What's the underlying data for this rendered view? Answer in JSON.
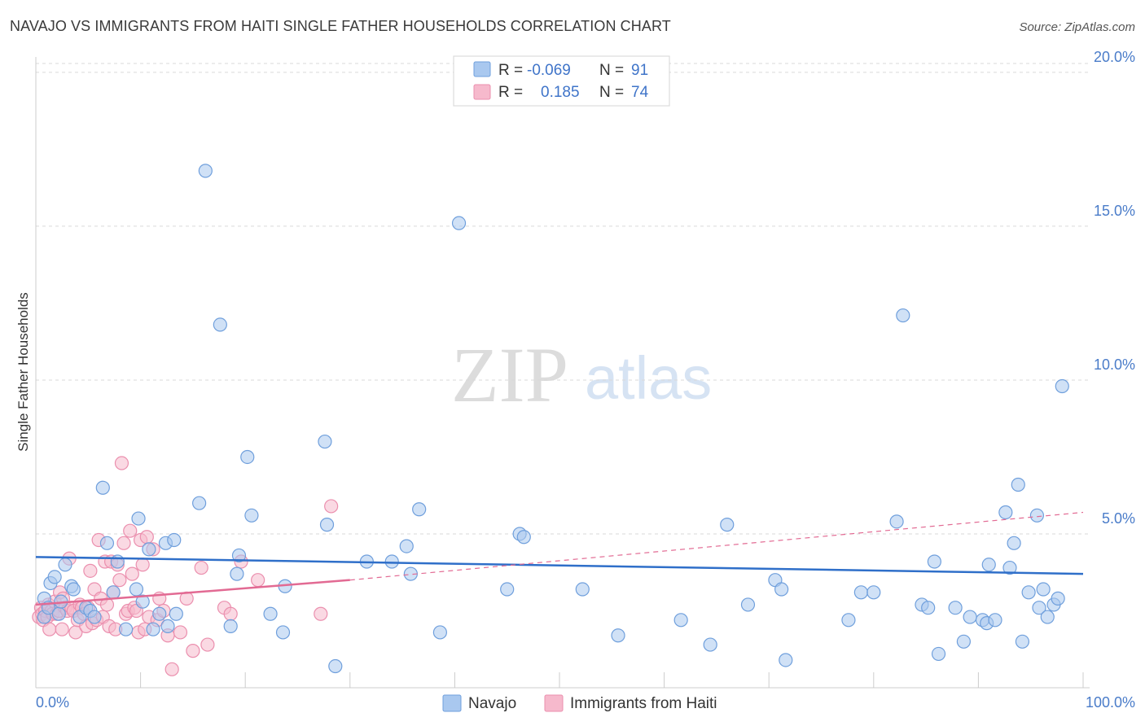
{
  "header": {
    "title": "NAVAJO VS IMMIGRANTS FROM HAITI SINGLE FATHER HOUSEHOLDS CORRELATION CHART",
    "source": "Source: ZipAtlas.com"
  },
  "watermark": {
    "part1": "ZIP",
    "part2": "atlas"
  },
  "colors": {
    "navajo_fill": "#a9c8ef",
    "navajo_stroke": "#6f9fdc",
    "navajo_line": "#2f6fc9",
    "haiti_fill": "#f6b9cc",
    "haiti_stroke": "#eb8fae",
    "haiti_line": "#e26a93",
    "grid": "#d9d9d9",
    "tick_label": "#4a7cc9"
  },
  "legend": {
    "rows": [
      {
        "r_label": "R =",
        "r_value": "-0.069",
        "n_label": "N =",
        "n_value": "91"
      },
      {
        "r_label": "R =",
        "r_value": "0.185",
        "n_label": "N =",
        "n_value": "74"
      }
    ]
  },
  "chart_data": {
    "type": "scatter",
    "title": "NAVAJO VS IMMIGRANTS FROM HAITI SINGLE FATHER HOUSEHOLDS CORRELATION CHART",
    "xlabel": "",
    "ylabel": "Single Father Households",
    "xlim": [
      0,
      100
    ],
    "ylim": [
      0,
      20.5
    ],
    "x_tick_labels": [
      "0.0%",
      "100.0%"
    ],
    "y_ticks": [
      5,
      10,
      15,
      20
    ],
    "y_tick_labels": [
      "5.0%",
      "10.0%",
      "15.0%",
      "20.0%"
    ],
    "legend_position": "top-center",
    "series": [
      {
        "name": "Navajo",
        "r": -0.069,
        "n": 91,
        "trend": {
          "x": [
            0,
            100
          ],
          "y": [
            4.25,
            3.7
          ]
        },
        "points": [
          [
            0.8,
            2.3
          ],
          [
            0.8,
            2.9
          ],
          [
            1.2,
            2.6
          ],
          [
            1.4,
            3.4
          ],
          [
            1.8,
            3.6
          ],
          [
            2.2,
            2.4
          ],
          [
            2.4,
            2.8
          ],
          [
            2.8,
            4.0
          ],
          [
            3.4,
            3.3
          ],
          [
            3.6,
            3.2
          ],
          [
            4.2,
            2.3
          ],
          [
            4.8,
            2.6
          ],
          [
            5.2,
            2.5
          ],
          [
            5.6,
            2.3
          ],
          [
            6.4,
            6.5
          ],
          [
            6.8,
            4.7
          ],
          [
            7.4,
            3.1
          ],
          [
            7.8,
            4.1
          ],
          [
            8.6,
            1.9
          ],
          [
            9.6,
            3.2
          ],
          [
            9.8,
            5.5
          ],
          [
            10.2,
            2.8
          ],
          [
            10.8,
            4.5
          ],
          [
            11.2,
            1.9
          ],
          [
            11.8,
            2.4
          ],
          [
            12.4,
            4.7
          ],
          [
            12.6,
            2.0
          ],
          [
            13.2,
            4.8
          ],
          [
            13.4,
            2.4
          ],
          [
            15.6,
            6.0
          ],
          [
            16.2,
            16.8
          ],
          [
            17.6,
            11.8
          ],
          [
            18.6,
            2.0
          ],
          [
            19.2,
            3.7
          ],
          [
            19.4,
            4.3
          ],
          [
            20.2,
            7.5
          ],
          [
            20.6,
            5.6
          ],
          [
            22.4,
            2.4
          ],
          [
            23.6,
            1.8
          ],
          [
            23.8,
            3.3
          ],
          [
            27.6,
            8.0
          ],
          [
            27.8,
            5.3
          ],
          [
            28.6,
            0.7
          ],
          [
            31.6,
            4.1
          ],
          [
            34.0,
            4.1
          ],
          [
            35.4,
            4.6
          ],
          [
            35.8,
            3.7
          ],
          [
            36.6,
            5.8
          ],
          [
            38.6,
            1.8
          ],
          [
            40.4,
            15.1
          ],
          [
            45.0,
            3.2
          ],
          [
            46.2,
            5.0
          ],
          [
            46.6,
            4.9
          ],
          [
            52.2,
            3.2
          ],
          [
            55.6,
            1.7
          ],
          [
            61.6,
            2.2
          ],
          [
            64.4,
            1.4
          ],
          [
            66.0,
            5.3
          ],
          [
            68.0,
            2.7
          ],
          [
            70.6,
            3.5
          ],
          [
            71.2,
            3.2
          ],
          [
            71.6,
            0.9
          ],
          [
            77.6,
            2.2
          ],
          [
            78.8,
            3.1
          ],
          [
            80.0,
            3.1
          ],
          [
            82.2,
            5.4
          ],
          [
            82.8,
            12.1
          ],
          [
            84.6,
            2.7
          ],
          [
            85.2,
            2.6
          ],
          [
            85.8,
            4.1
          ],
          [
            86.2,
            1.1
          ],
          [
            87.8,
            2.6
          ],
          [
            88.6,
            1.5
          ],
          [
            89.2,
            2.3
          ],
          [
            90.4,
            2.2
          ],
          [
            90.8,
            2.1
          ],
          [
            91.0,
            4.0
          ],
          [
            91.6,
            2.2
          ],
          [
            92.6,
            5.7
          ],
          [
            93.0,
            3.9
          ],
          [
            93.4,
            4.7
          ],
          [
            93.8,
            6.6
          ],
          [
            94.2,
            1.5
          ],
          [
            94.8,
            3.1
          ],
          [
            95.6,
            5.6
          ],
          [
            95.8,
            2.6
          ],
          [
            96.2,
            3.2
          ],
          [
            96.6,
            2.3
          ],
          [
            97.2,
            2.7
          ],
          [
            97.6,
            2.9
          ],
          [
            98.0,
            9.8
          ]
        ]
      },
      {
        "name": "Immigrants from Haiti",
        "r": 0.185,
        "n": 74,
        "trend": {
          "x": [
            0,
            30
          ],
          "y": [
            2.7,
            3.5
          ]
        },
        "trend_extended": {
          "x": [
            30,
            100
          ],
          "y": [
            3.5,
            5.7
          ]
        },
        "points": [
          [
            0.3,
            2.3
          ],
          [
            0.5,
            2.6
          ],
          [
            0.6,
            2.4
          ],
          [
            0.7,
            2.2
          ],
          [
            0.9,
            2.5
          ],
          [
            1.1,
            2.3
          ],
          [
            1.2,
            2.7
          ],
          [
            1.3,
            1.9
          ],
          [
            1.5,
            2.5
          ],
          [
            1.6,
            2.4
          ],
          [
            1.8,
            2.8
          ],
          [
            2.0,
            2.4
          ],
          [
            2.2,
            2.5
          ],
          [
            2.3,
            3.1
          ],
          [
            2.5,
            1.9
          ],
          [
            2.6,
            2.9
          ],
          [
            2.8,
            2.6
          ],
          [
            3.0,
            2.5
          ],
          [
            3.2,
            4.2
          ],
          [
            3.4,
            2.6
          ],
          [
            3.6,
            2.5
          ],
          [
            3.8,
            1.8
          ],
          [
            4.0,
            2.2
          ],
          [
            4.2,
            2.7
          ],
          [
            4.4,
            2.6
          ],
          [
            4.6,
            2.4
          ],
          [
            4.8,
            2.0
          ],
          [
            5.0,
            2.6
          ],
          [
            5.2,
            3.8
          ],
          [
            5.4,
            2.1
          ],
          [
            5.6,
            3.2
          ],
          [
            5.8,
            2.2
          ],
          [
            6.0,
            4.8
          ],
          [
            6.2,
            2.9
          ],
          [
            6.4,
            2.3
          ],
          [
            6.6,
            4.1
          ],
          [
            6.8,
            2.7
          ],
          [
            7.0,
            2.0
          ],
          [
            7.2,
            4.1
          ],
          [
            7.4,
            3.1
          ],
          [
            7.6,
            1.9
          ],
          [
            7.8,
            4.0
          ],
          [
            8.0,
            3.5
          ],
          [
            8.2,
            7.3
          ],
          [
            8.4,
            4.7
          ],
          [
            8.6,
            2.4
          ],
          [
            8.8,
            2.5
          ],
          [
            9.0,
            5.1
          ],
          [
            9.2,
            3.7
          ],
          [
            9.4,
            2.6
          ],
          [
            9.6,
            2.5
          ],
          [
            9.8,
            1.8
          ],
          [
            10.0,
            4.8
          ],
          [
            10.2,
            4.0
          ],
          [
            10.4,
            1.9
          ],
          [
            10.6,
            4.9
          ],
          [
            10.8,
            2.3
          ],
          [
            11.2,
            4.5
          ],
          [
            11.6,
            2.2
          ],
          [
            11.8,
            2.9
          ],
          [
            12.2,
            2.5
          ],
          [
            12.6,
            1.7
          ],
          [
            13.0,
            0.6
          ],
          [
            13.8,
            1.8
          ],
          [
            14.4,
            2.9
          ],
          [
            15.0,
            1.2
          ],
          [
            15.8,
            3.9
          ],
          [
            16.4,
            1.4
          ],
          [
            18.0,
            2.6
          ],
          [
            18.6,
            2.4
          ],
          [
            19.6,
            4.1
          ],
          [
            21.2,
            3.5
          ],
          [
            27.2,
            2.4
          ],
          [
            28.2,
            5.9
          ]
        ]
      }
    ]
  },
  "bottom_legend": {
    "items": [
      "Navajo",
      "Immigrants from Haiti"
    ]
  }
}
